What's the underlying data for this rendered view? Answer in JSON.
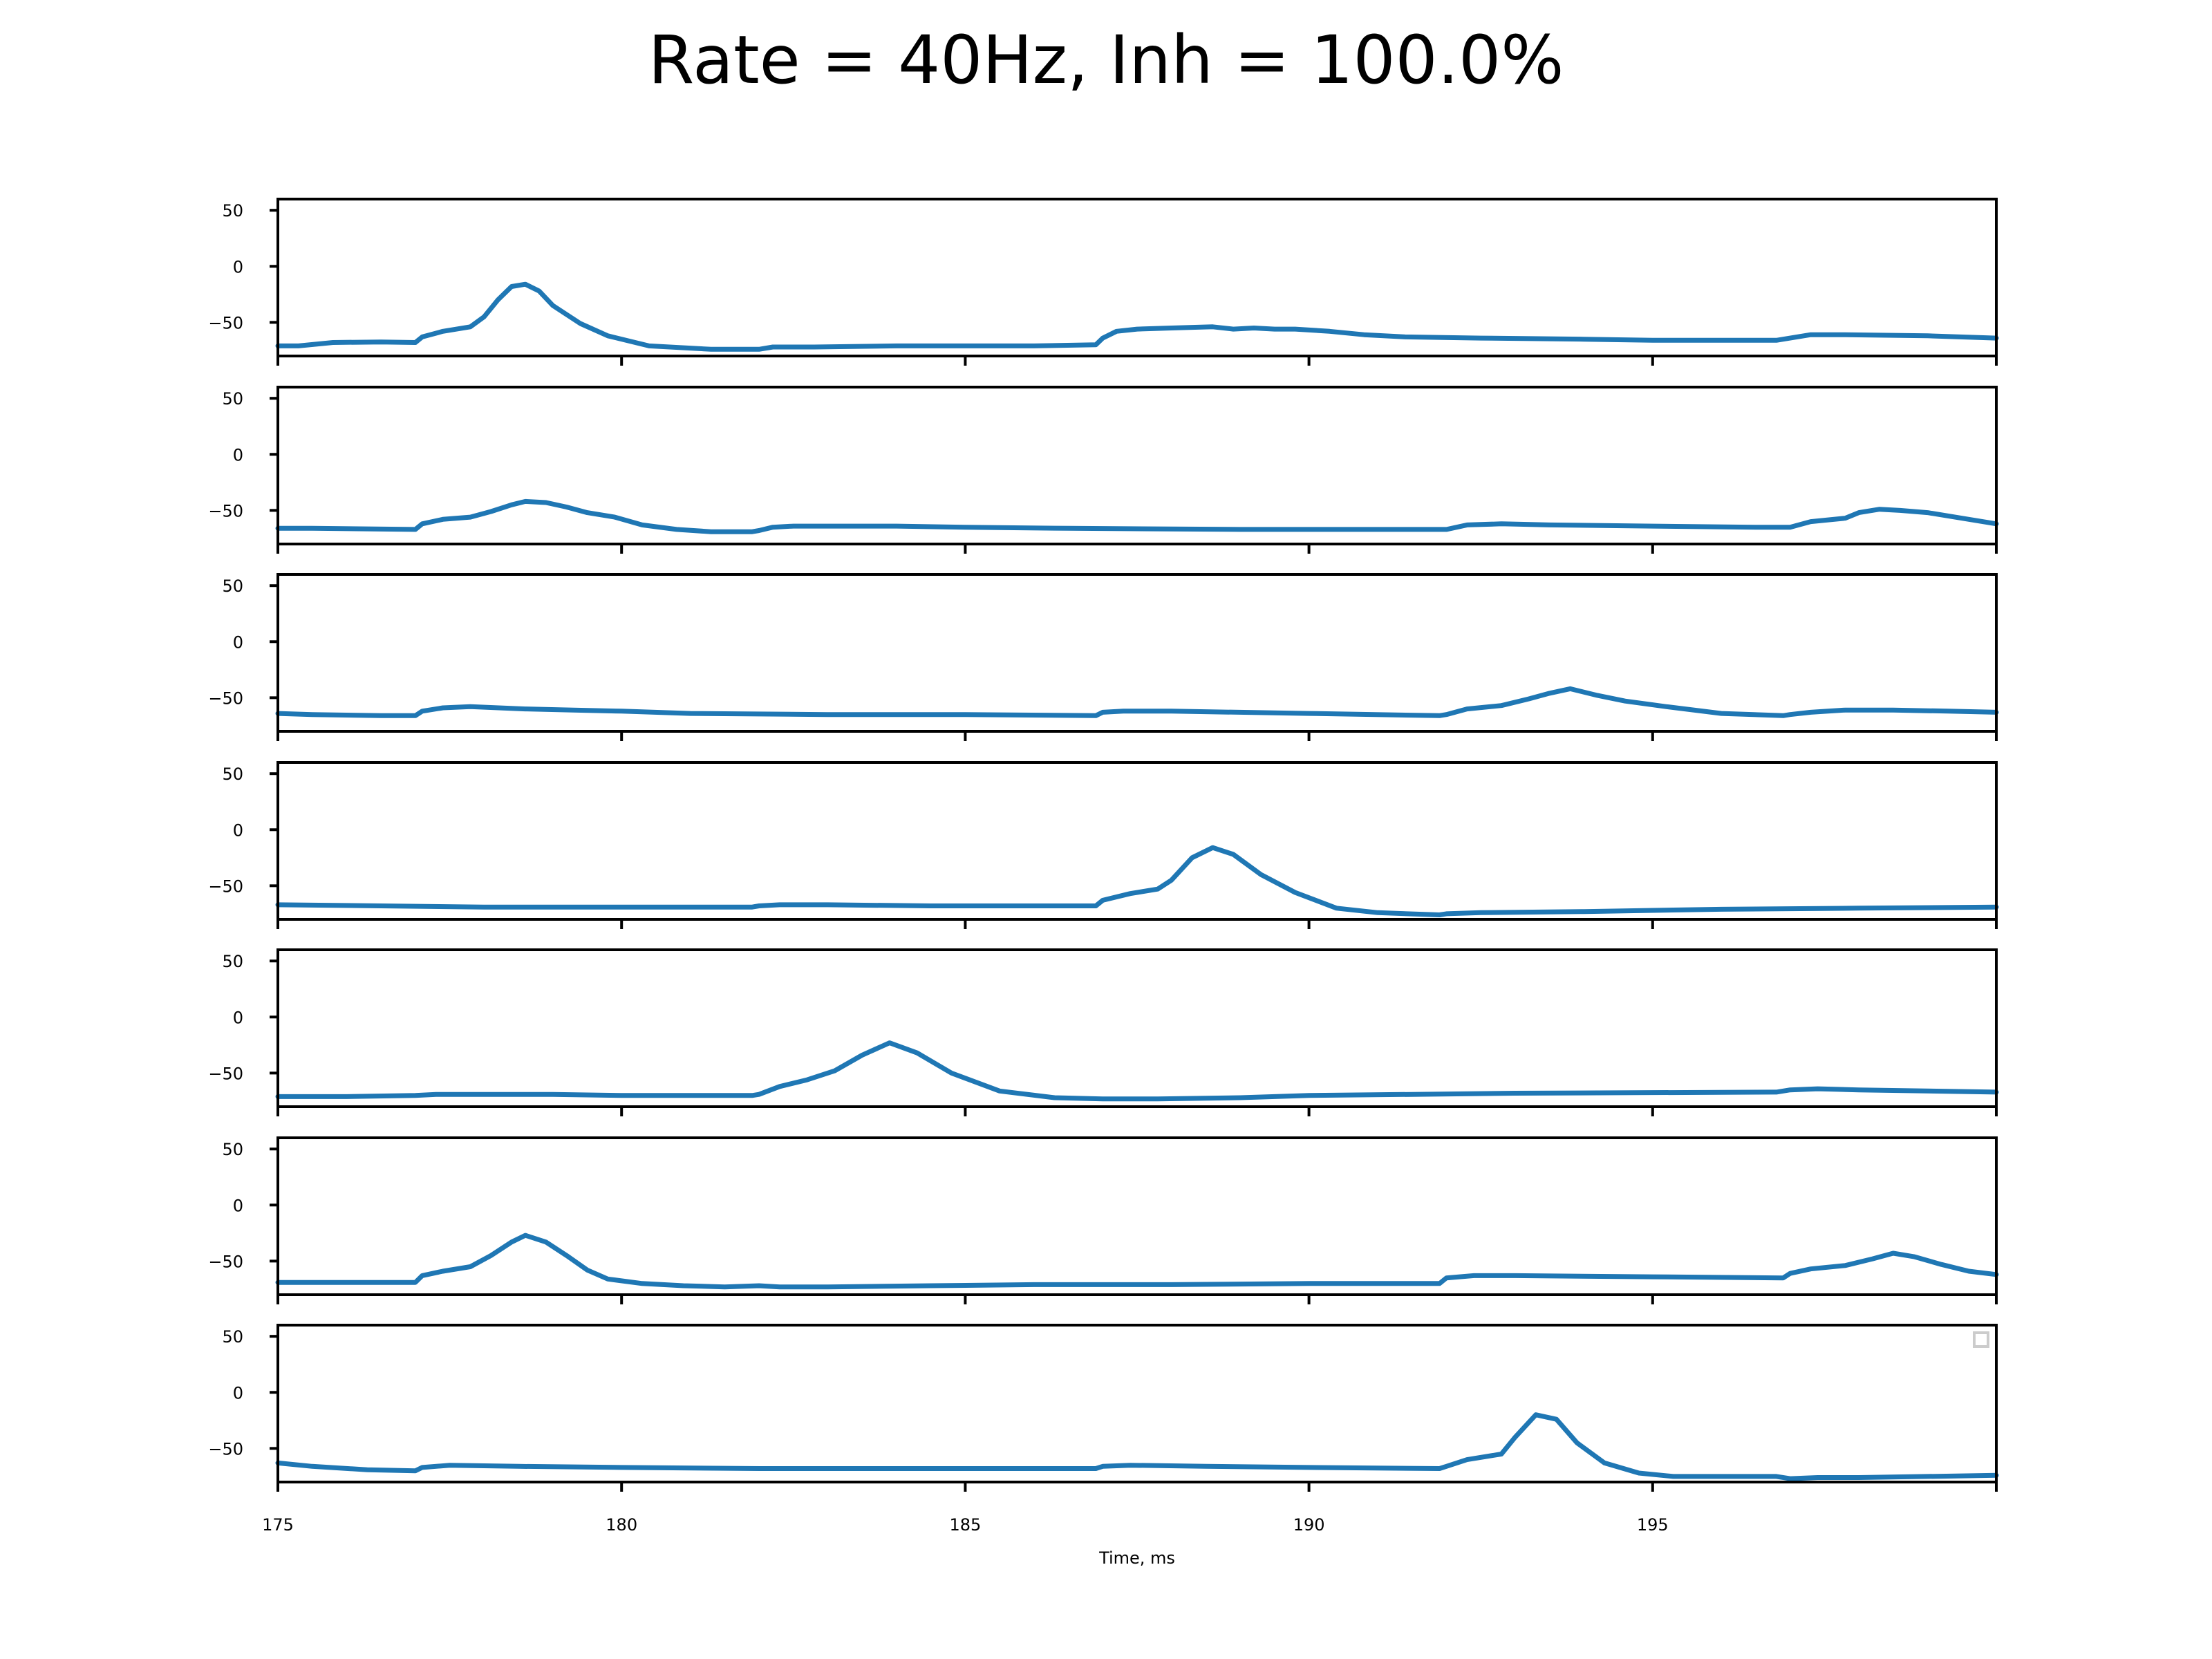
{
  "chart_data": {
    "type": "line",
    "title": "Rate = 40Hz, Inh = 100.0%",
    "xlabel": "Time, ms",
    "ylabel": "",
    "xlim": [
      175,
      200
    ],
    "ylim": [
      -80,
      60
    ],
    "yticks": [
      50,
      0,
      -50
    ],
    "xtick_labels": [
      "175",
      "180",
      "185",
      "190",
      "195"
    ],
    "xtick_values": [
      175,
      180,
      185,
      190,
      195
    ],
    "color": "#1f77b4",
    "grid": false,
    "legend": "top-right (empty)",
    "panels": [
      {
        "x": [
          175,
          175.3,
          175.8,
          176.5,
          177,
          177.1,
          177.4,
          177.8,
          178,
          178.2,
          178.4,
          178.6,
          178.8,
          179,
          179.4,
          179.8,
          180.4,
          181.3,
          182,
          182.2,
          182.8,
          184,
          186,
          186.9,
          187,
          187.2,
          187.5,
          188,
          188.6,
          188.9,
          189.2,
          189.5,
          189.8,
          190.3,
          190.8,
          191.4,
          192.5,
          194,
          195,
          196.8,
          197,
          197.3,
          197.8,
          199,
          200
        ],
        "y": [
          -71,
          -71,
          -68,
          -67.5,
          -68,
          -63,
          -58,
          -54,
          -45,
          -30,
          -18,
          -16,
          -22,
          -35,
          -51,
          -62,
          -71,
          -74,
          -74,
          -72,
          -72,
          -71,
          -71,
          -70,
          -64,
          -58,
          -56,
          -55,
          -54,
          -56,
          -55,
          -56,
          -56,
          -58,
          -61,
          -63,
          -64,
          -65,
          -66,
          -66,
          -64,
          -61,
          -61,
          -62,
          -64
        ]
      },
      {
        "x": [
          175,
          175.5,
          177,
          177.1,
          177.4,
          177.8,
          178.1,
          178.4,
          178.6,
          178.9,
          179.2,
          179.5,
          179.9,
          180.3,
          180.8,
          181.3,
          181.9,
          182,
          182.2,
          182.5,
          183,
          184,
          185,
          186.5,
          189,
          190,
          191.9,
          192,
          192.3,
          192.8,
          193.5,
          195,
          196.5,
          196.9,
          197,
          197.3,
          197.8,
          198,
          198.3,
          198.6,
          199,
          199.5,
          200
        ],
        "y": [
          -66,
          -66,
          -67,
          -62,
          -58,
          -56,
          -51,
          -45,
          -42,
          -43,
          -47,
          -52,
          -56,
          -63,
          -67,
          -69,
          -69,
          -68,
          -65,
          -64,
          -64,
          -64,
          -65,
          -66,
          -67,
          -67,
          -67,
          -67,
          -63,
          -62,
          -63,
          -64,
          -65,
          -65,
          -65,
          -60,
          -57,
          -52,
          -49,
          -50,
          -52,
          -57,
          -62
        ]
      },
      {
        "x": [
          175,
          175.5,
          176.5,
          177,
          177.1,
          177.4,
          177.8,
          178.6,
          179.3,
          180,
          181,
          183,
          185,
          186.9,
          187,
          187.3,
          188,
          190,
          191.9,
          192,
          192.3,
          192.8,
          193.2,
          193.5,
          193.8,
          194.2,
          194.6,
          195.2,
          196,
          196.9,
          197,
          197.3,
          197.8,
          198.5,
          199.3,
          200
        ],
        "y": [
          -64,
          -65,
          -66,
          -66,
          -62,
          -59,
          -58,
          -60,
          -61,
          -62,
          -64,
          -65,
          -65,
          -66,
          -63,
          -62,
          -62,
          -64,
          -66,
          -65,
          -60,
          -57,
          -51,
          -46,
          -42,
          -48,
          -53,
          -58,
          -64,
          -66,
          -65,
          -63,
          -61,
          -61,
          -62,
          -63
        ]
      },
      {
        "x": [
          175,
          176.5,
          178,
          179.5,
          181,
          181.9,
          182,
          182.3,
          183,
          184.5,
          186,
          186.9,
          187,
          187.4,
          187.8,
          188,
          188.3,
          188.6,
          188.9,
          189.3,
          189.8,
          190.4,
          191,
          191.9,
          192,
          192.5,
          194,
          196,
          198,
          200
        ],
        "y": [
          -67,
          -68,
          -69,
          -69,
          -69,
          -69,
          -68,
          -67,
          -67,
          -68,
          -68,
          -68,
          -63,
          -57,
          -53,
          -45,
          -25,
          -16,
          -22,
          -40,
          -56,
          -70,
          -74,
          -76,
          -75,
          -74,
          -73,
          -71,
          -70,
          -69
        ]
      },
      {
        "x": [
          175,
          176,
          177,
          177.3,
          178,
          179,
          180,
          181,
          181.9,
          182,
          182.3,
          182.7,
          183.1,
          183.5,
          183.9,
          184.3,
          184.8,
          185.5,
          186.3,
          187,
          187.8,
          189,
          190,
          191.5,
          193,
          196.8,
          197,
          197.4,
          198,
          200
        ],
        "y": [
          -71,
          -71,
          -70,
          -69,
          -69,
          -69,
          -70,
          -70,
          -70,
          -69,
          -62,
          -56,
          -48,
          -34,
          -23,
          -32,
          -50,
          -66,
          -72,
          -73,
          -73,
          -72,
          -70,
          -69,
          -68,
          -67,
          -65,
          -64,
          -65,
          -67
        ]
      },
      {
        "x": [
          175,
          176,
          177,
          177.1,
          177.4,
          177.8,
          178.1,
          178.4,
          178.6,
          178.9,
          179.2,
          179.5,
          179.8,
          180.3,
          180.9,
          181.5,
          182,
          182.3,
          183,
          184.5,
          186,
          188,
          190,
          191.9,
          192,
          192.4,
          193,
          195,
          196.9,
          197,
          197.3,
          197.8,
          198.2,
          198.5,
          198.8,
          199.2,
          199.6,
          200
        ],
        "y": [
          -69,
          -69,
          -69,
          -63,
          -59,
          -55,
          -45,
          -33,
          -27,
          -33,
          -45,
          -58,
          -66,
          -70,
          -72,
          -73,
          -72,
          -73,
          -73,
          -72,
          -71,
          -71,
          -70,
          -70,
          -65,
          -63,
          -63,
          -64,
          -65,
          -61,
          -57,
          -54,
          -48,
          -43,
          -46,
          -53,
          -59,
          -62
        ]
      },
      {
        "x": [
          175,
          175.5,
          176.3,
          177,
          177.1,
          177.5,
          178.5,
          180,
          182,
          184,
          186,
          186.9,
          187,
          187.4,
          188.5,
          190,
          191.9,
          192,
          192.3,
          192.8,
          193,
          193.3,
          193.6,
          193.9,
          194.3,
          194.8,
          195.3,
          196,
          196.8,
          197,
          197.4,
          198,
          199,
          200
        ],
        "y": [
          -63,
          -66,
          -69,
          -70,
          -67,
          -65,
          -66,
          -67,
          -68,
          -68,
          -68,
          -68,
          -66,
          -65,
          -66,
          -67,
          -68,
          -66,
          -60,
          -55,
          -40,
          -20,
          -24,
          -45,
          -63,
          -72,
          -75,
          -75,
          -75,
          -77,
          -76,
          -76,
          -75,
          -74
        ]
      }
    ]
  }
}
